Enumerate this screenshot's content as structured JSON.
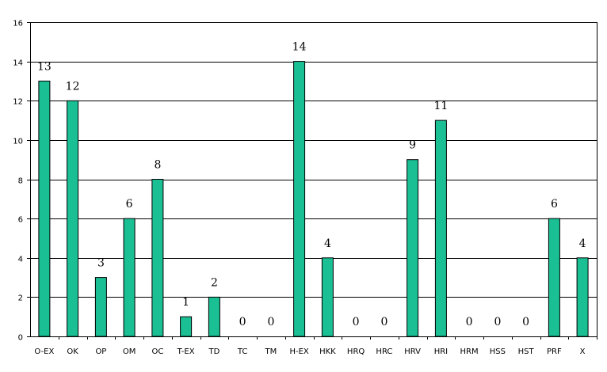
{
  "chart_data": {
    "type": "bar",
    "categories": [
      "O-EX",
      "OK",
      "OP",
      "OM",
      "OC",
      "T-EX",
      "TD",
      "TC",
      "TM",
      "H-EX",
      "HKK",
      "HRQ",
      "HRC",
      "HRV",
      "HRI",
      "HRM",
      "HSS",
      "HST",
      "PRF",
      "X"
    ],
    "values": [
      13,
      12,
      3,
      6,
      8,
      1,
      2,
      0,
      0,
      14,
      4,
      0,
      0,
      9,
      11,
      0,
      0,
      0,
      6,
      4
    ],
    "title": "",
    "xlabel": "",
    "ylabel": "",
    "ylim": [
      0,
      16
    ],
    "yticks": [
      0,
      2,
      4,
      6,
      8,
      10,
      12,
      14,
      16
    ],
    "grid": true,
    "legend": "none",
    "colors": {
      "bar": "#1abf94",
      "bar_stroke": "#000000",
      "grid": "#000000"
    }
  }
}
